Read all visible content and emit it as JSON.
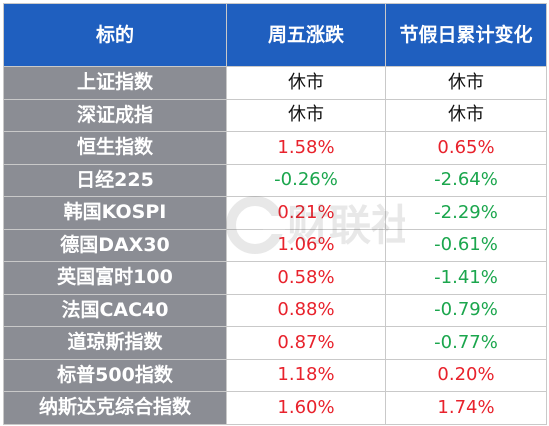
{
  "table": {
    "headers": [
      "标的",
      "周五涨跌",
      "节假日累计变化"
    ],
    "rows": [
      {
        "name": "上证指数",
        "friday": "休市",
        "friday_dir": "flat",
        "holiday": "休市",
        "holiday_dir": "flat"
      },
      {
        "name": "深证成指",
        "friday": "休市",
        "friday_dir": "flat",
        "holiday": "休市",
        "holiday_dir": "flat"
      },
      {
        "name": "恒生指数",
        "friday": "1.58%",
        "friday_dir": "up",
        "holiday": "0.65%",
        "holiday_dir": "up"
      },
      {
        "name": "日经225",
        "friday": "-0.26%",
        "friday_dir": "down",
        "holiday": "-2.64%",
        "holiday_dir": "down"
      },
      {
        "name": "韩国KOSPI",
        "friday": "0.21%",
        "friday_dir": "up",
        "holiday": "-2.29%",
        "holiday_dir": "down"
      },
      {
        "name": "德国DAX30",
        "friday": "1.06%",
        "friday_dir": "up",
        "holiday": "-0.61%",
        "holiday_dir": "down"
      },
      {
        "name": "英国富时100",
        "friday": "0.58%",
        "friday_dir": "up",
        "holiday": "-1.41%",
        "holiday_dir": "down"
      },
      {
        "name": "法国CAC40",
        "friday": "0.88%",
        "friday_dir": "up",
        "holiday": "-0.79%",
        "holiday_dir": "down"
      },
      {
        "name": "道琼斯指数",
        "friday": "0.87%",
        "friday_dir": "up",
        "holiday": "-0.77%",
        "holiday_dir": "down"
      },
      {
        "name": "标普500指数",
        "friday": "1.18%",
        "friday_dir": "up",
        "holiday": "0.20%",
        "holiday_dir": "up"
      },
      {
        "name": "纳斯达克综合指数",
        "friday": "1.60%",
        "friday_dir": "up",
        "holiday": "1.74%",
        "holiday_dir": "up"
      }
    ]
  },
  "watermark": {
    "text": "财联社"
  },
  "colors": {
    "header_bg": "#1f5fbf",
    "name_bg": "#8b8d94",
    "up": "#e8222c",
    "down": "#1ba64d"
  }
}
